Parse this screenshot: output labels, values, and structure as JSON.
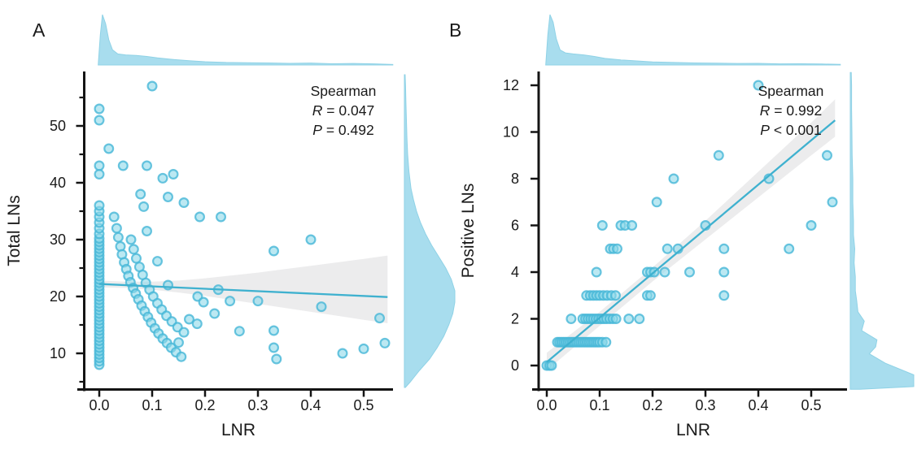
{
  "colors": {
    "background": "#ffffff",
    "point_fill": "#8ed8ea",
    "point_stroke": "#46b6d7",
    "regression_line": "#3fb1cf",
    "ci_band": "#dcdcdf",
    "density_fill": "#a8ddee",
    "density_stroke": "#8fd2e6",
    "axis": "#141414",
    "text": "#1a1a1a"
  },
  "chart_data": [
    {
      "type": "scatter",
      "panel_label": "A",
      "xlabel": "LNR",
      "ylabel": "Total LNs",
      "xtick_labels": [
        "0.0",
        "0.1",
        "0.2",
        "0.3",
        "0.4",
        "0.5"
      ],
      "xtick_values": [
        0,
        0.1,
        0.2,
        0.3,
        0.4,
        0.5
      ],
      "ytick_labels": [
        "10",
        "20",
        "30",
        "40",
        "50"
      ],
      "ytick_values": [
        10,
        20,
        30,
        40,
        50
      ],
      "y_minor_ticks": [
        5,
        15,
        25,
        35,
        45,
        55
      ],
      "xlim": [
        -0.03,
        0.56
      ],
      "ylim": [
        3.5,
        59.5
      ],
      "legend_position": "none",
      "grid": false,
      "marginals": "kernel density top (LNR) and right (Total LNs)",
      "annotation": {
        "method": "Spearman",
        "stats": [
          {
            "sym": "R",
            "rest": " = 0.047"
          },
          {
            "sym": "P",
            "rest": " = 0.492"
          }
        ]
      },
      "regression": {
        "x0": 0,
        "y0": 22.2,
        "x1": 0.545,
        "y1": 19.9
      },
      "ci_band": {
        "x": [
          0,
          0.05,
          0.1,
          0.15,
          0.2,
          0.25,
          0.3,
          0.35,
          0.4,
          0.45,
          0.5,
          0.545
        ],
        "upper": [
          22.8,
          22.6,
          22.6,
          22.8,
          23.2,
          23.7,
          24.2,
          24.8,
          25.4,
          26.0,
          26.6,
          27.2
        ],
        "lower": [
          21.6,
          21.5,
          21.2,
          20.7,
          20.1,
          19.4,
          18.7,
          18.0,
          17.3,
          16.6,
          15.9,
          15.3
        ]
      },
      "points": [
        [
          0,
          8
        ],
        [
          0,
          8.6
        ],
        [
          0,
          9.2
        ],
        [
          0,
          9.8
        ],
        [
          0,
          10.4
        ],
        [
          0,
          11
        ],
        [
          0,
          11.6
        ],
        [
          0,
          12.2
        ],
        [
          0,
          12.8
        ],
        [
          0,
          13.4
        ],
        [
          0,
          14
        ],
        [
          0,
          14.6
        ],
        [
          0,
          15.2
        ],
        [
          0,
          15.8
        ],
        [
          0,
          16.4
        ],
        [
          0,
          17
        ],
        [
          0,
          17.6
        ],
        [
          0,
          18.2
        ],
        [
          0,
          18.8
        ],
        [
          0,
          19.4
        ],
        [
          0,
          20
        ],
        [
          0,
          20.6
        ],
        [
          0,
          21.2
        ],
        [
          0,
          21.8
        ],
        [
          0,
          22.4
        ],
        [
          0,
          23
        ],
        [
          0,
          23.6
        ],
        [
          0,
          24.2
        ],
        [
          0,
          24.8
        ],
        [
          0,
          25.4
        ],
        [
          0,
          26
        ],
        [
          0,
          26.6
        ],
        [
          0,
          27.2
        ],
        [
          0,
          27.8
        ],
        [
          0,
          28.4
        ],
        [
          0,
          29
        ],
        [
          0,
          29.6
        ],
        [
          0,
          30.2
        ],
        [
          0,
          31
        ],
        [
          0,
          32
        ],
        [
          0,
          33
        ],
        [
          0,
          34
        ],
        [
          0,
          35
        ],
        [
          0,
          36
        ],
        [
          0,
          41.5
        ],
        [
          0,
          43
        ],
        [
          0,
          51
        ],
        [
          0,
          53
        ],
        [
          0.1,
          57
        ],
        [
          0.018,
          46
        ],
        [
          0.045,
          43
        ],
        [
          0.09,
          43
        ],
        [
          0.12,
          40.8
        ],
        [
          0.14,
          41.5
        ],
        [
          0.078,
          38
        ],
        [
          0.13,
          37.5
        ],
        [
          0.16,
          36.5
        ],
        [
          0.084,
          35.8
        ],
        [
          0.028,
          34
        ],
        [
          0.19,
          34
        ],
        [
          0.23,
          34
        ],
        [
          0.09,
          31.5
        ],
        [
          0.4,
          30
        ],
        [
          0.33,
          28
        ],
        [
          0.11,
          26.2
        ],
        [
          0.033,
          32
        ],
        [
          0.036,
          30.4
        ],
        [
          0.04,
          28.8
        ],
        [
          0.043,
          27.4
        ],
        [
          0.047,
          26
        ],
        [
          0.051,
          24.8
        ],
        [
          0.055,
          23.6
        ],
        [
          0.059,
          22.5
        ],
        [
          0.064,
          21.5
        ],
        [
          0.069,
          20.5
        ],
        [
          0.074,
          19.5
        ],
        [
          0.08,
          18.4
        ],
        [
          0.086,
          17.4
        ],
        [
          0.092,
          16.4
        ],
        [
          0.098,
          15.4
        ],
        [
          0.105,
          14.4
        ],
        [
          0.112,
          13.5
        ],
        [
          0.12,
          12.6
        ],
        [
          0.128,
          11.8
        ],
        [
          0.136,
          11
        ],
        [
          0.145,
          10.2
        ],
        [
          0.155,
          9.4
        ],
        [
          0.06,
          30
        ],
        [
          0.065,
          28.3
        ],
        [
          0.07,
          26.7
        ],
        [
          0.076,
          25.2
        ],
        [
          0.082,
          23.8
        ],
        [
          0.088,
          22.4
        ],
        [
          0.095,
          21.2
        ],
        [
          0.102,
          20
        ],
        [
          0.11,
          18.8
        ],
        [
          0.118,
          17.7
        ],
        [
          0.127,
          16.6
        ],
        [
          0.137,
          15.6
        ],
        [
          0.148,
          14.6
        ],
        [
          0.16,
          13.7
        ],
        [
          0.13,
          22
        ],
        [
          0.186,
          20
        ],
        [
          0.197,
          19
        ],
        [
          0.225,
          21.2
        ],
        [
          0.247,
          19.2
        ],
        [
          0.3,
          19.2
        ],
        [
          0.42,
          18.2
        ],
        [
          0.53,
          16.2
        ],
        [
          0.218,
          17
        ],
        [
          0.17,
          16
        ],
        [
          0.185,
          15.2
        ],
        [
          0.15,
          11.9
        ],
        [
          0.265,
          13.9
        ],
        [
          0.33,
          14
        ],
        [
          0.33,
          11
        ],
        [
          0.335,
          9
        ],
        [
          0.46,
          10
        ],
        [
          0.5,
          10.8
        ],
        [
          0.54,
          11.8
        ]
      ],
      "x_density": [
        [
          -0.002,
          0.0
        ],
        [
          0.002,
          0.6
        ],
        [
          0.006,
          1.0
        ],
        [
          0.012,
          0.82
        ],
        [
          0.018,
          0.5
        ],
        [
          0.025,
          0.3
        ],
        [
          0.035,
          0.22
        ],
        [
          0.05,
          0.2
        ],
        [
          0.07,
          0.19
        ],
        [
          0.09,
          0.17
        ],
        [
          0.11,
          0.14
        ],
        [
          0.14,
          0.11
        ],
        [
          0.17,
          0.085
        ],
        [
          0.2,
          0.065
        ],
        [
          0.24,
          0.05
        ],
        [
          0.28,
          0.045
        ],
        [
          0.32,
          0.04
        ],
        [
          0.36,
          0.033
        ],
        [
          0.4,
          0.038
        ],
        [
          0.44,
          0.025
        ],
        [
          0.48,
          0.03
        ],
        [
          0.52,
          0.022
        ],
        [
          0.555,
          0.012
        ]
      ],
      "y_density": [
        [
          4,
          0.02
        ],
        [
          5,
          0.12
        ],
        [
          7,
          0.3
        ],
        [
          9,
          0.5
        ],
        [
          11,
          0.65
        ],
        [
          13,
          0.78
        ],
        [
          15,
          0.88
        ],
        [
          17,
          0.96
        ],
        [
          19,
          1.0
        ],
        [
          21,
          1.0
        ],
        [
          23,
          0.93
        ],
        [
          25,
          0.82
        ],
        [
          27,
          0.68
        ],
        [
          29,
          0.54
        ],
        [
          31,
          0.42
        ],
        [
          33,
          0.32
        ],
        [
          35,
          0.24
        ],
        [
          37,
          0.18
        ],
        [
          39,
          0.13
        ],
        [
          42,
          0.09
        ],
        [
          45,
          0.065
        ],
        [
          48,
          0.05
        ],
        [
          51,
          0.04
        ],
        [
          54,
          0.03
        ],
        [
          57,
          0.022
        ],
        [
          59,
          0.015
        ]
      ]
    },
    {
      "type": "scatter",
      "panel_label": "B",
      "xlabel": "LNR",
      "ylabel": "Positive LNs",
      "xtick_labels": [
        "0.0",
        "0.1",
        "0.2",
        "0.3",
        "0.4",
        "0.5"
      ],
      "xtick_values": [
        0,
        0.1,
        0.2,
        0.3,
        0.4,
        0.5
      ],
      "ytick_labels": [
        "0",
        "2",
        "4",
        "6",
        "8",
        "10",
        "12"
      ],
      "ytick_values": [
        0,
        2,
        4,
        6,
        8,
        10,
        12
      ],
      "y_minor_ticks": [],
      "xlim": [
        -0.03,
        0.56
      ],
      "ylim": [
        -1.1,
        12.6
      ],
      "legend_position": "none",
      "grid": false,
      "marginals": "kernel density top (LNR) and right (Positive LNs)",
      "annotation": {
        "method": "Spearman",
        "stats": [
          {
            "sym": "R",
            "rest": " = 0.992"
          },
          {
            "sym": "P",
            "rest": " < 0.001"
          }
        ]
      },
      "regression": {
        "x0": 0,
        "y0": 0.15,
        "x1": 0.545,
        "y1": 10.5
      },
      "ci_band": {
        "x": [
          0,
          0.1,
          0.2,
          0.3,
          0.4,
          0.5,
          0.545
        ],
        "upper": [
          0.55,
          2.3,
          4.2,
          6.2,
          8.3,
          10.4,
          11.4
        ],
        "lower": [
          -0.2,
          1.7,
          3.6,
          5.4,
          7.2,
          9.0,
          9.8
        ]
      },
      "points": [
        [
          0,
          0
        ],
        [
          0.005,
          0
        ],
        [
          0.009,
          0
        ],
        [
          0.02,
          1
        ],
        [
          0.024,
          1
        ],
        [
          0.028,
          1
        ],
        [
          0.032,
          1
        ],
        [
          0.036,
          1
        ],
        [
          0.04,
          1
        ],
        [
          0.044,
          1
        ],
        [
          0.048,
          1
        ],
        [
          0.052,
          1
        ],
        [
          0.056,
          1
        ],
        [
          0.06,
          1
        ],
        [
          0.064,
          1
        ],
        [
          0.068,
          1
        ],
        [
          0.072,
          1
        ],
        [
          0.076,
          1
        ],
        [
          0.08,
          1
        ],
        [
          0.084,
          1
        ],
        [
          0.088,
          1
        ],
        [
          0.092,
          1
        ],
        [
          0.096,
          1
        ],
        [
          0.1,
          1
        ],
        [
          0.105,
          1
        ],
        [
          0.112,
          1
        ],
        [
          0.046,
          2
        ],
        [
          0.068,
          2
        ],
        [
          0.073,
          2
        ],
        [
          0.078,
          2
        ],
        [
          0.083,
          2
        ],
        [
          0.088,
          2
        ],
        [
          0.093,
          2
        ],
        [
          0.098,
          2
        ],
        [
          0.103,
          2
        ],
        [
          0.108,
          2
        ],
        [
          0.113,
          2
        ],
        [
          0.119,
          2
        ],
        [
          0.125,
          2
        ],
        [
          0.131,
          2
        ],
        [
          0.155,
          2
        ],
        [
          0.175,
          2
        ],
        [
          0.075,
          3
        ],
        [
          0.082,
          3
        ],
        [
          0.088,
          3
        ],
        [
          0.094,
          3
        ],
        [
          0.1,
          3
        ],
        [
          0.107,
          3
        ],
        [
          0.114,
          3
        ],
        [
          0.122,
          3
        ],
        [
          0.13,
          3
        ],
        [
          0.19,
          3
        ],
        [
          0.196,
          3
        ],
        [
          0.335,
          3
        ],
        [
          0.094,
          4
        ],
        [
          0.19,
          4
        ],
        [
          0.196,
          4
        ],
        [
          0.203,
          4
        ],
        [
          0.223,
          4
        ],
        [
          0.27,
          4
        ],
        [
          0.335,
          4
        ],
        [
          0.12,
          5
        ],
        [
          0.126,
          5
        ],
        [
          0.133,
          5
        ],
        [
          0.228,
          5
        ],
        [
          0.248,
          5
        ],
        [
          0.335,
          5
        ],
        [
          0.458,
          5
        ],
        [
          0.105,
          6
        ],
        [
          0.14,
          6
        ],
        [
          0.148,
          6
        ],
        [
          0.161,
          6
        ],
        [
          0.3,
          6
        ],
        [
          0.5,
          6
        ],
        [
          0.208,
          7
        ],
        [
          0.54,
          7
        ],
        [
          0.24,
          8
        ],
        [
          0.42,
          8
        ],
        [
          0.325,
          9
        ],
        [
          0.53,
          9
        ],
        [
          0.4,
          12
        ]
      ],
      "x_density": [
        [
          -0.002,
          0.0
        ],
        [
          0.002,
          0.6
        ],
        [
          0.006,
          1.0
        ],
        [
          0.012,
          0.85
        ],
        [
          0.018,
          0.52
        ],
        [
          0.025,
          0.3
        ],
        [
          0.035,
          0.24
        ],
        [
          0.05,
          0.22
        ],
        [
          0.07,
          0.2
        ],
        [
          0.09,
          0.17
        ],
        [
          0.11,
          0.13
        ],
        [
          0.14,
          0.1
        ],
        [
          0.17,
          0.08
        ],
        [
          0.2,
          0.06
        ],
        [
          0.24,
          0.05
        ],
        [
          0.28,
          0.04
        ],
        [
          0.32,
          0.035
        ],
        [
          0.36,
          0.03
        ],
        [
          0.4,
          0.033
        ],
        [
          0.44,
          0.022
        ],
        [
          0.48,
          0.025
        ],
        [
          0.52,
          0.02
        ],
        [
          0.555,
          0.012
        ]
      ],
      "y_density": [
        [
          -1.02,
          0.15
        ],
        [
          -0.9,
          1.0
        ],
        [
          -0.4,
          1.0
        ],
        [
          0.1,
          0.55
        ],
        [
          0.5,
          0.3
        ],
        [
          0.8,
          0.4
        ],
        [
          1.1,
          0.42
        ],
        [
          1.5,
          0.18
        ],
        [
          1.9,
          0.22
        ],
        [
          2.3,
          0.12
        ],
        [
          2.8,
          0.1
        ],
        [
          3.2,
          0.08
        ],
        [
          3.8,
          0.08
        ],
        [
          4.4,
          0.06
        ],
        [
          5,
          0.07
        ],
        [
          5.6,
          0.05
        ],
        [
          6.2,
          0.05
        ],
        [
          7,
          0.04
        ],
        [
          8,
          0.04
        ],
        [
          9,
          0.03
        ],
        [
          10,
          0.025
        ],
        [
          11,
          0.02
        ],
        [
          12,
          0.02
        ],
        [
          12.55,
          0.015
        ]
      ]
    }
  ]
}
